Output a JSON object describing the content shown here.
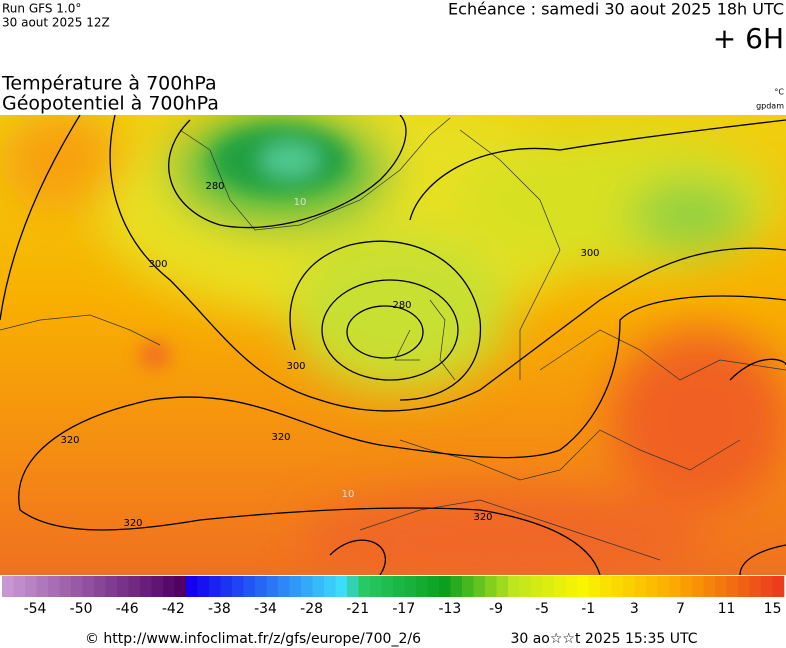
{
  "header": {
    "run": "Run GFS 1.0°",
    "run_date": "30 aout 2025 12Z",
    "forecast": "Echéance : samedi 30 aout 2025 18h UTC",
    "lead": "+ 6H",
    "title1": "Température à 700hPa",
    "title2": "Géopotentiel à 700hPa",
    "unit_temp": "°C",
    "unit_geo": "gpdam"
  },
  "map": {
    "contour_labels": [
      "280",
      "300",
      "10",
      "300",
      "280",
      "300",
      "320",
      "320",
      "10",
      "320",
      "320"
    ]
  },
  "legend": {
    "labels": [
      -54,
      -50,
      -46,
      -42,
      -38,
      -34,
      -28,
      -21,
      -17,
      -13,
      -9,
      -5,
      -1,
      3,
      7,
      11,
      15
    ]
  },
  "footer": {
    "url": "© http://www.infoclimat.fr/z/gfs/europe/700_2/6",
    "timestamp": "30 ao☆☆t 2025 15:35 UTC"
  }
}
